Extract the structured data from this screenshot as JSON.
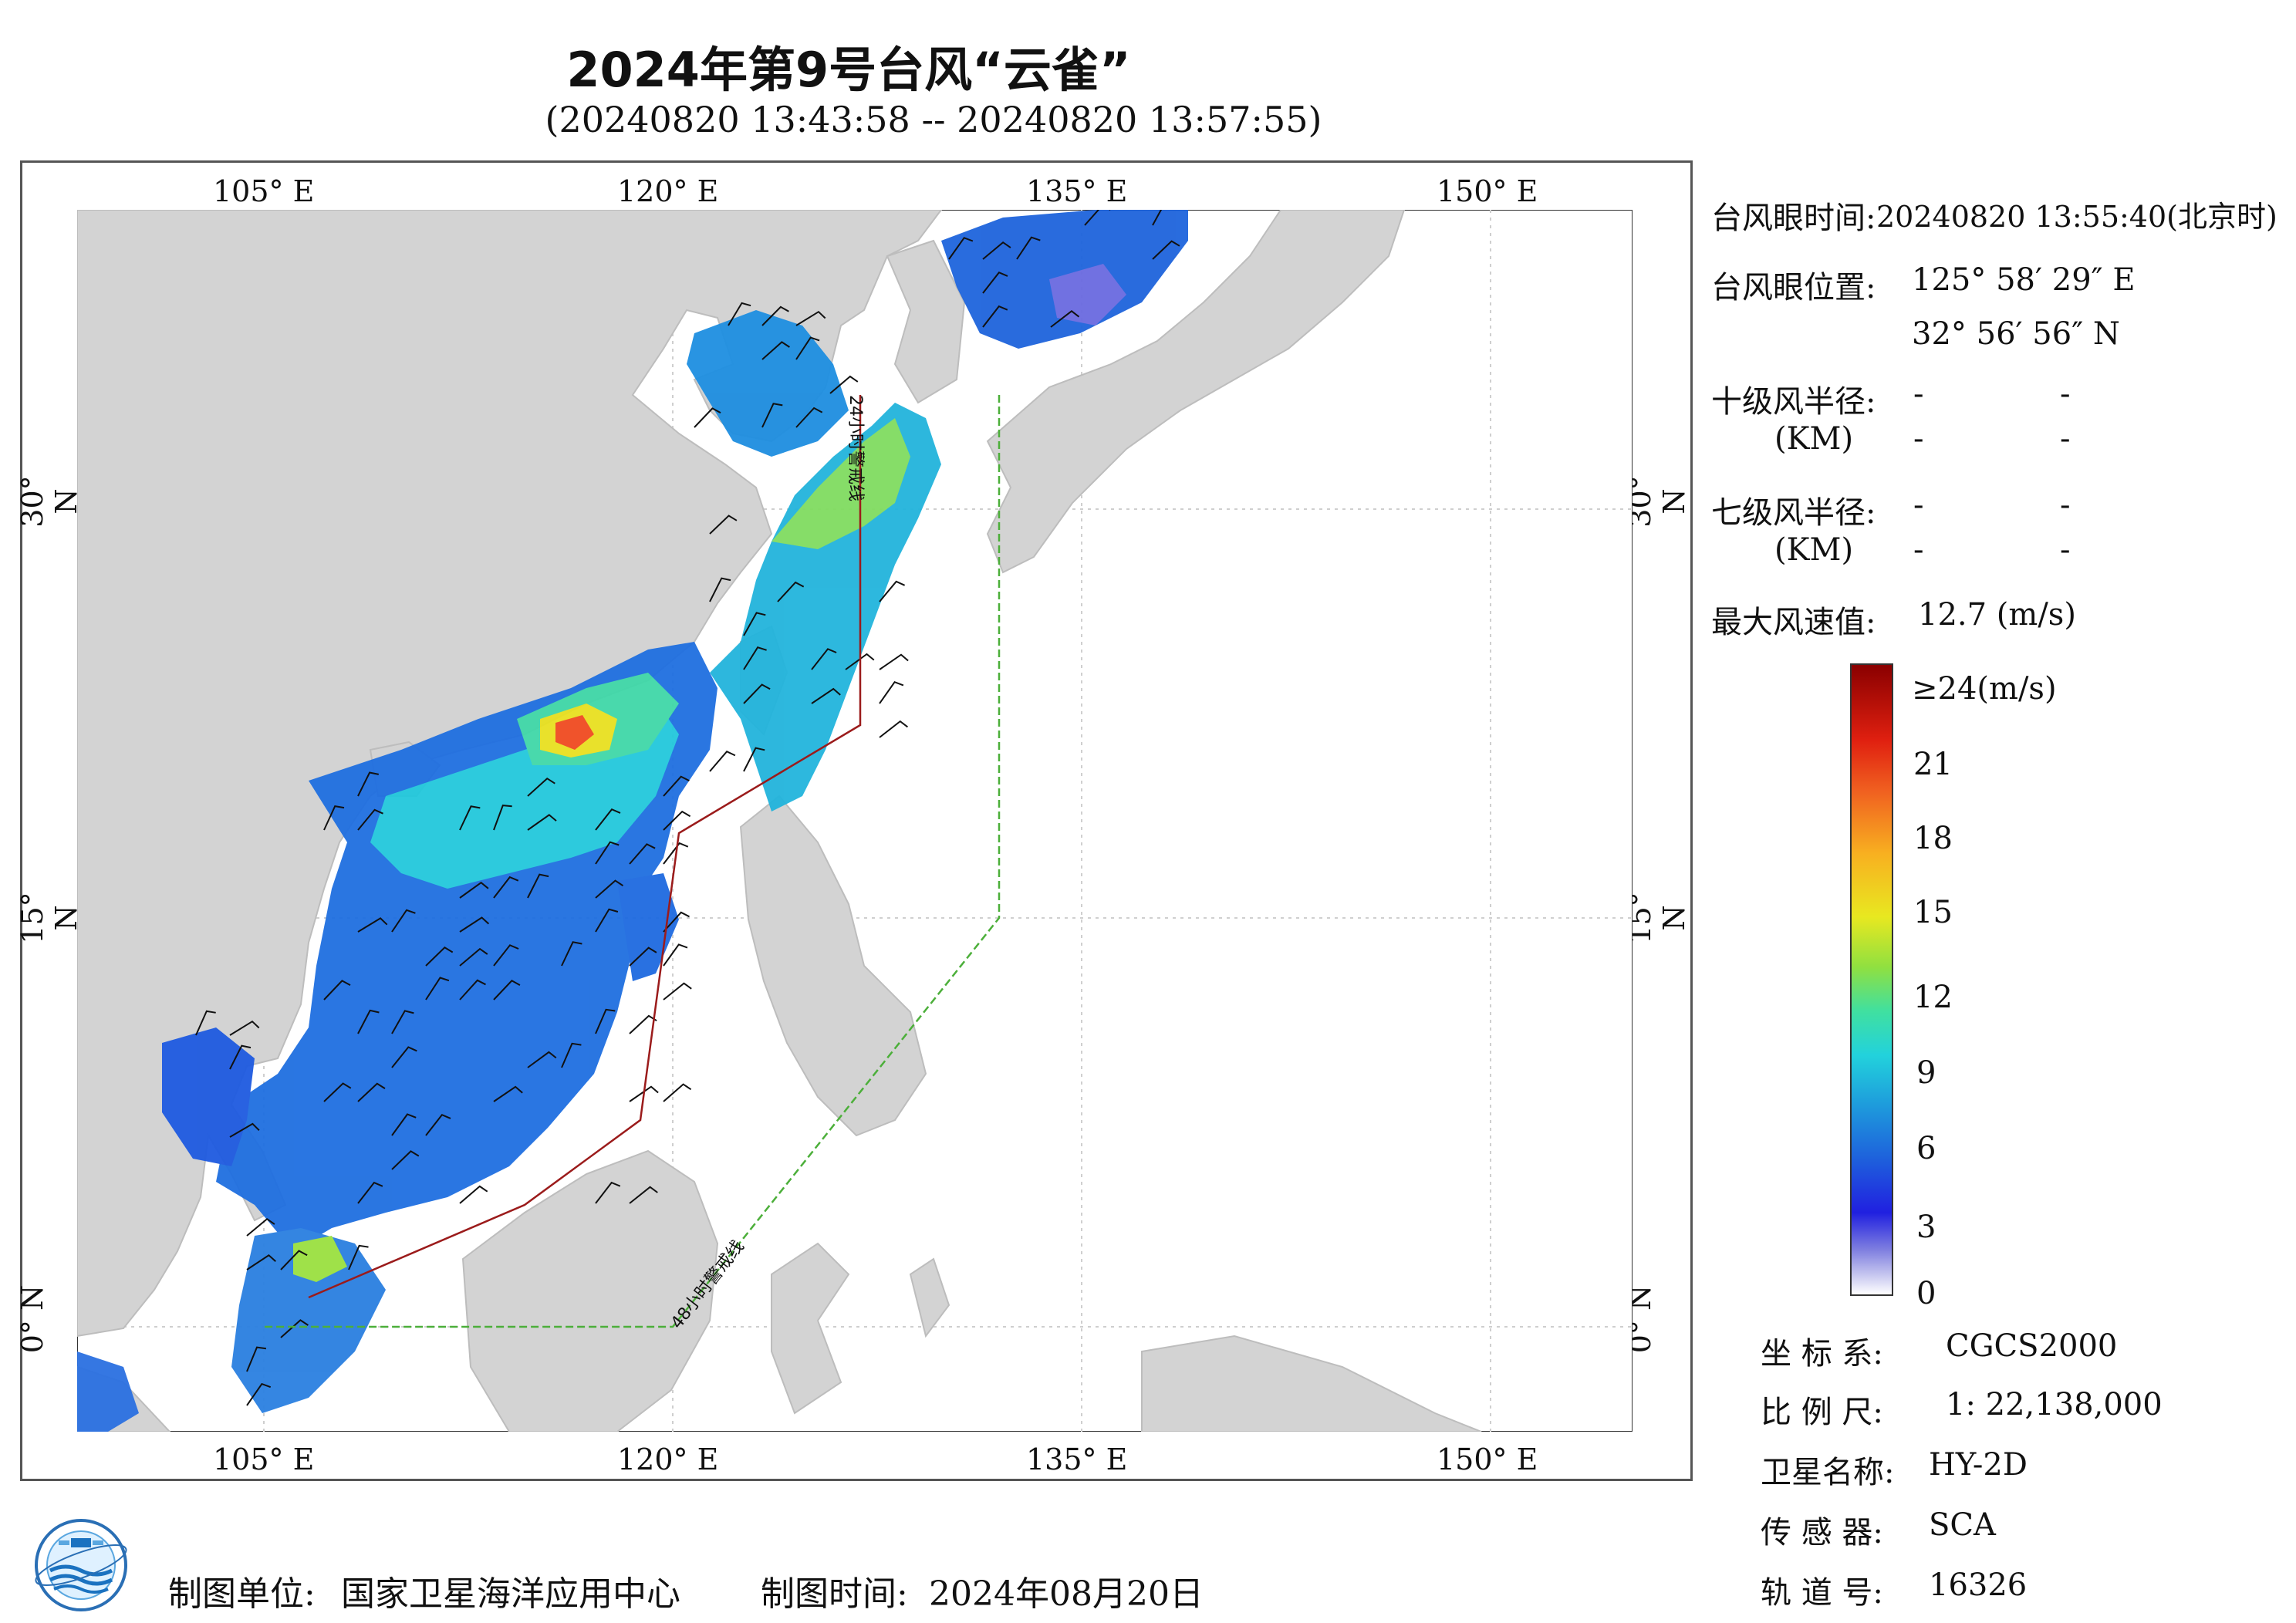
{
  "title": "2024年第9号台风“云雀”",
  "subtitle": "(20240820 13:43:58 -- 20240820 13:57:55)",
  "map": {
    "top_lon_labels": [
      "105° E",
      "120° E",
      "135° E",
      "150° E"
    ],
    "bottom_lon_labels": [
      "105° E",
      "120° E",
      "135° E",
      "150° E"
    ],
    "lat_labels": [
      "30° N",
      "15° N",
      "0° N"
    ],
    "warning_line_24h": "24小时警戒线",
    "warning_line_48h": "48小时警戒线",
    "colors": {
      "land": "#d3d3d3",
      "ocean": "#ffffff",
      "line24": "#9b1b1b",
      "line48": "#4caf3a"
    }
  },
  "info": {
    "eye_time_label": "台风眼时间:",
    "eye_time_value": "20240820 13:55:40(北京时)",
    "eye_pos_label": "台风眼位置:",
    "eye_lon": "125° 58′ 29″ E",
    "eye_lat": "32° 56′ 56″ N",
    "r10_label": "十级风半径:",
    "r7_label": "七级风半径:",
    "km_label": "(KM)",
    "dash": "-",
    "max_wind_label": "最大风速值:",
    "max_wind_value": "12.7  (m/s)"
  },
  "colorbar": {
    "unit_top": "≥24(m/s)",
    "ticks": [
      "21",
      "18",
      "15",
      "12",
      "9",
      "6",
      "3",
      "0"
    ]
  },
  "meta": {
    "crs_label": "坐 标 系:",
    "crs_value": "CGCS2000",
    "scale_label": "比 例 尺:",
    "scale_value": "1: 22,138,000",
    "sat_label": "卫星名称:",
    "sat_value": "HY-2D",
    "sensor_label": "传 感 器:",
    "sensor_value": "SCA",
    "orbit_label": "轨 道 号:",
    "orbit_value": "16326"
  },
  "footer": {
    "unit_label": "制图单位:",
    "unit_value": "国家卫星海洋应用中心",
    "date_label": "制图时间:",
    "date_value": "2024年08月20日"
  }
}
